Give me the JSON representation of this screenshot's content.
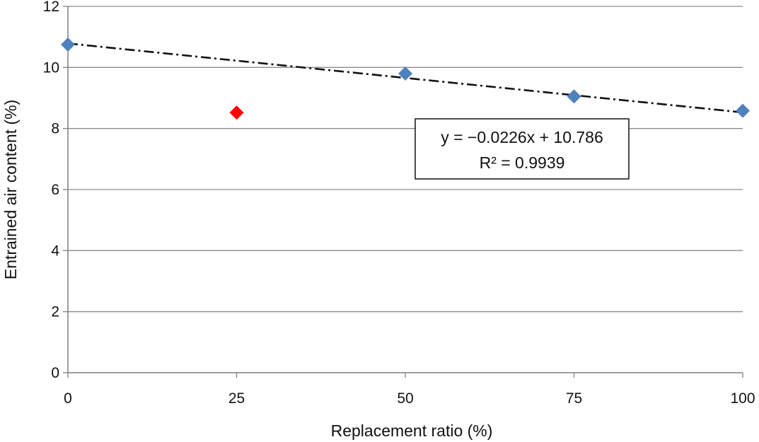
{
  "chart_data": {
    "type": "scatter",
    "xlabel": "Replacement ratio (%)",
    "ylabel": "Entrained air content (%)",
    "xlim": [
      0,
      100
    ],
    "ylim": [
      0,
      12
    ],
    "x_ticks": [
      0,
      25,
      50,
      75,
      100
    ],
    "y_ticks": [
      0,
      2,
      4,
      6,
      8,
      10,
      12
    ],
    "grid": "horizontal",
    "series": [
      {
        "color": "#4f81bd",
        "marker": "diamond",
        "points": [
          {
            "x": 0,
            "y": 10.75
          },
          {
            "x": 50,
            "y": 9.8
          },
          {
            "x": 75,
            "y": 9.05
          },
          {
            "x": 100,
            "y": 8.58
          }
        ]
      },
      {
        "color": "#ff0000",
        "marker": "diamond",
        "points": [
          {
            "x": 25,
            "y": 8.52
          }
        ]
      }
    ],
    "trendline": {
      "slope": -0.0226,
      "intercept": 10.786,
      "style": "dash-dot",
      "color": "#111111",
      "x_range": [
        0,
        100
      ]
    },
    "annotation": {
      "equation": "y = −0.0226x + 10.786",
      "r_squared": "R² = 0.9939"
    }
  }
}
